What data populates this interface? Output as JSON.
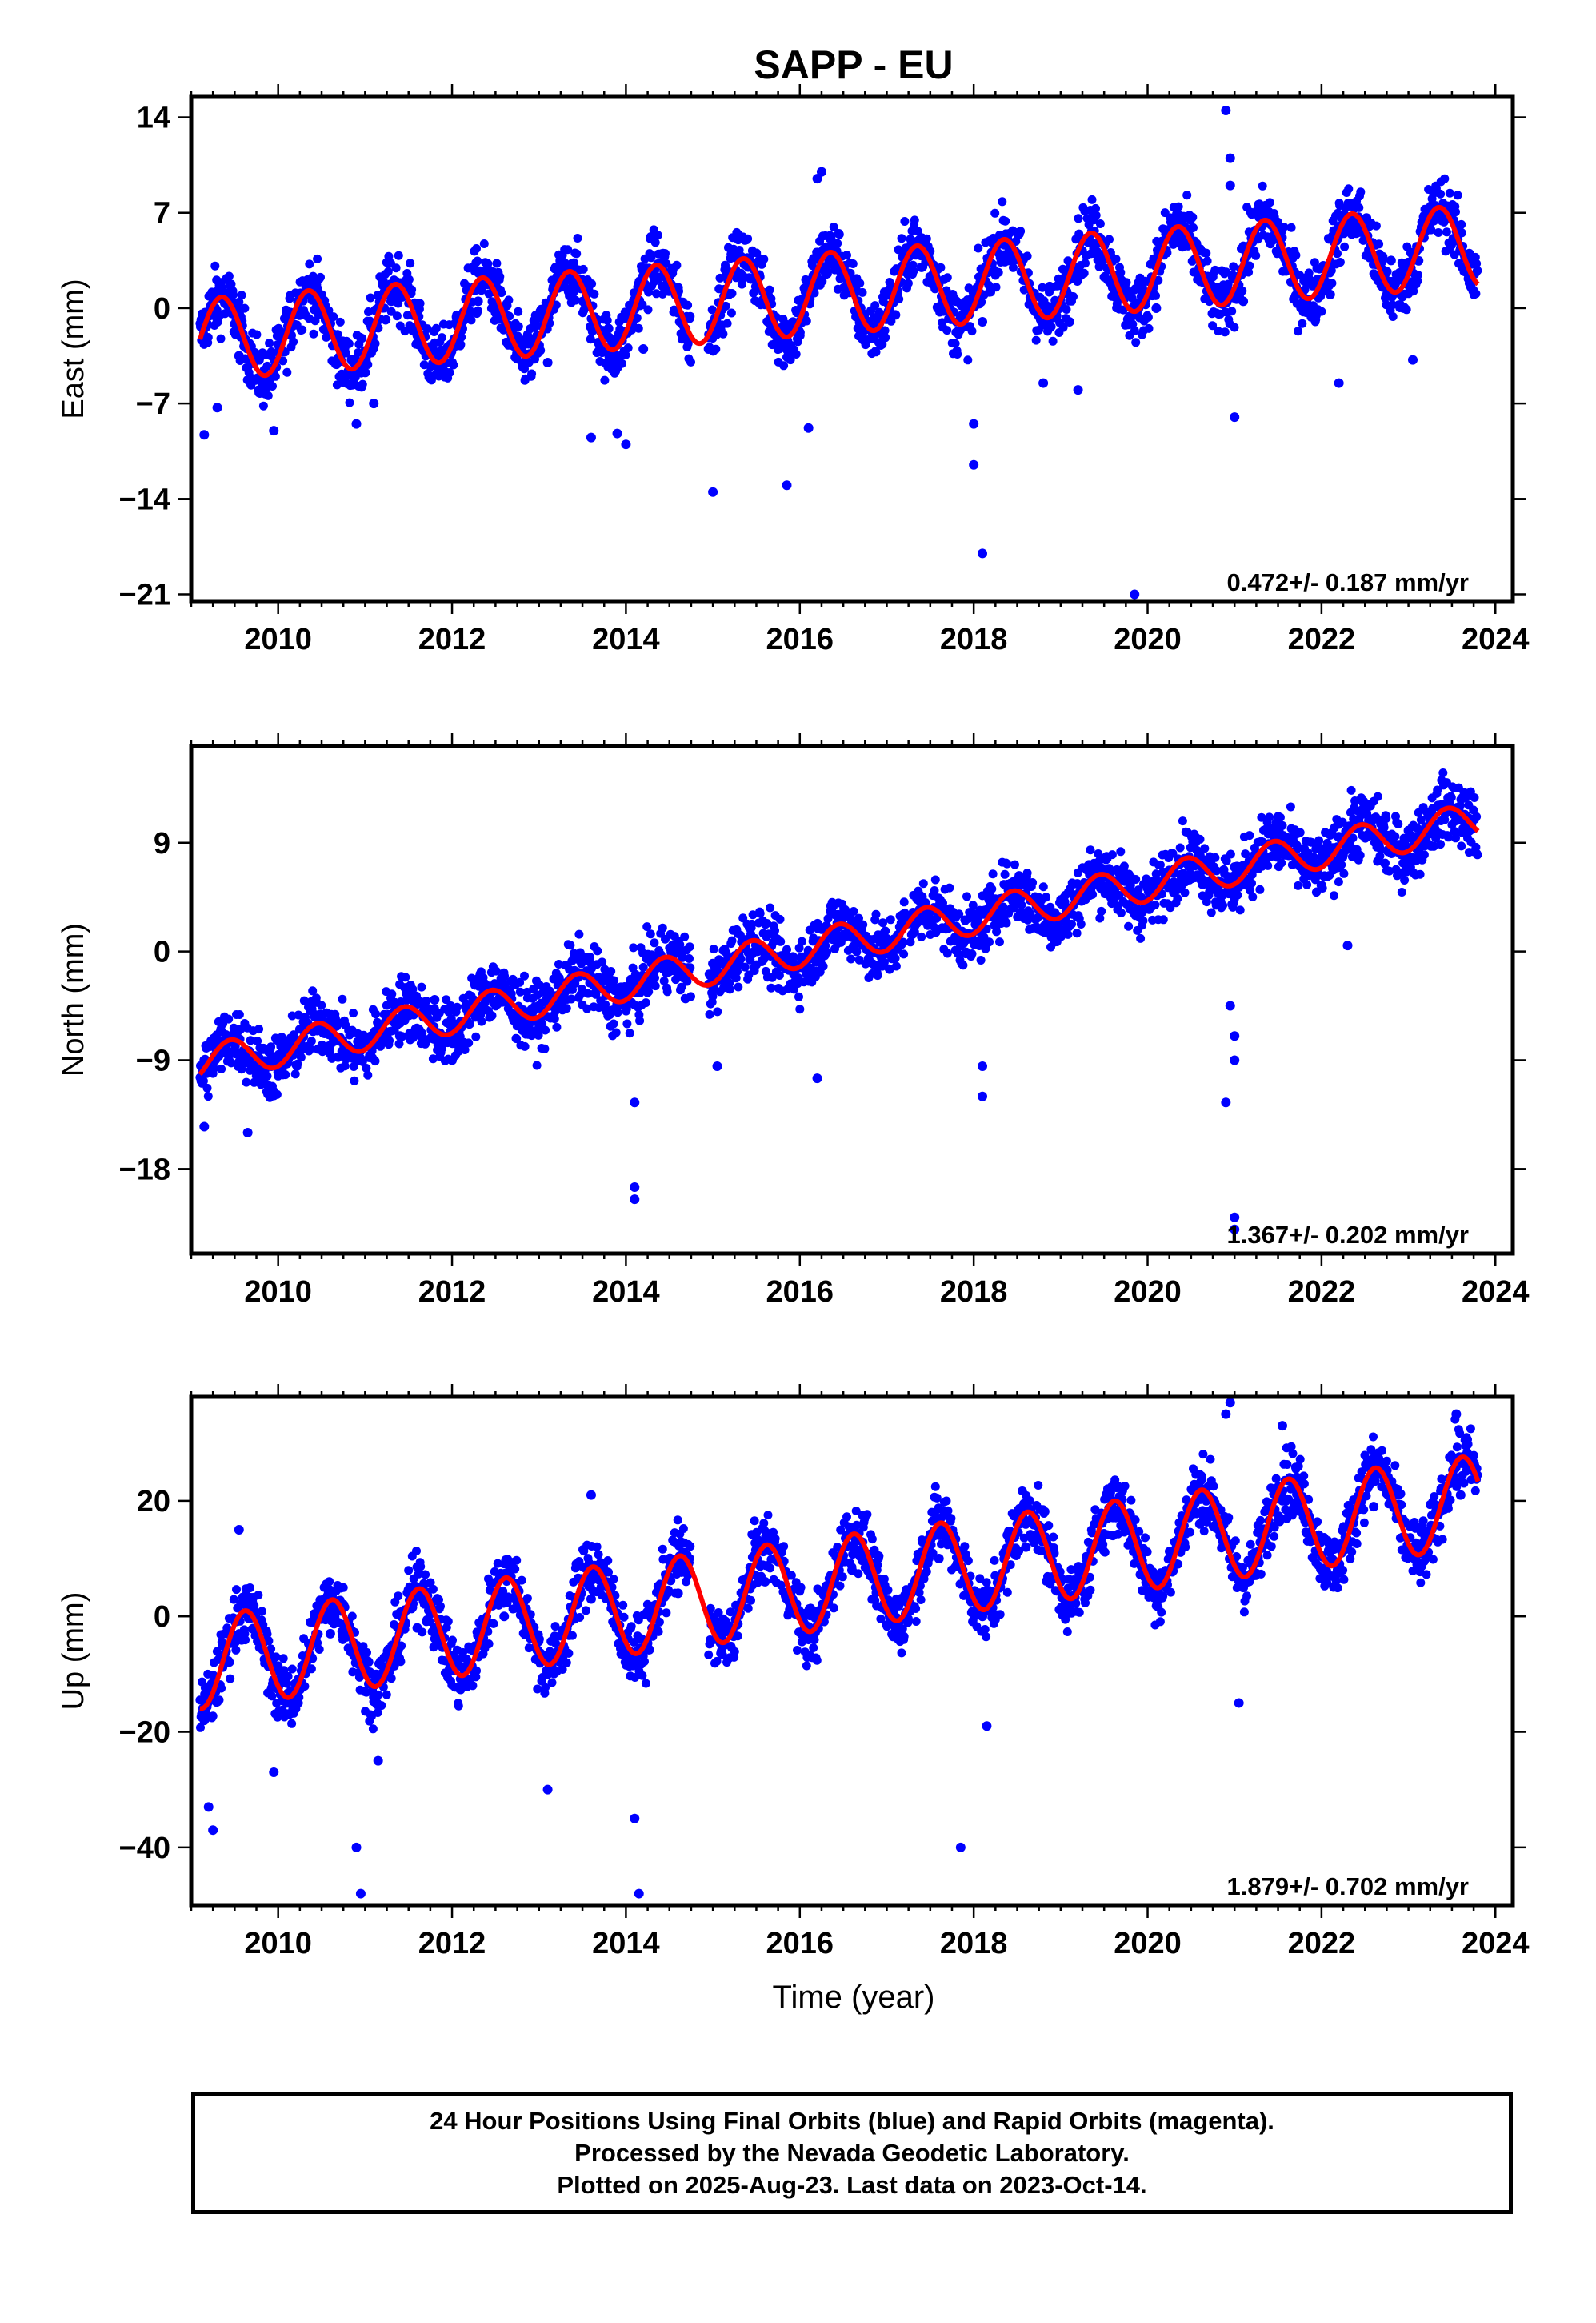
{
  "title": "SAPP - EU",
  "x_axis_label": "Time (year)",
  "x_tick_labels": [
    "2010",
    "2012",
    "2014",
    "2016",
    "2018",
    "2020",
    "2022",
    "2024"
  ],
  "colors": {
    "points": "#0000ff",
    "fit": "#ff0000",
    "frame": "#000000"
  },
  "footer": {
    "line1": "24 Hour Positions Using Final Orbits (blue) and Rapid Orbits (magenta).",
    "line2": "Processed by the Nevada Geodetic Laboratory.",
    "line3": "Plotted on 2025-Aug-23. Last data on 2023-Oct-14."
  },
  "chart_data": [
    {
      "type": "scatter",
      "ylabel": "East (mm)",
      "rate_label": "0.472+/- 0.187 mm/yr",
      "xlim": [
        2009.0,
        2024.2
      ],
      "ylim": [
        -21.5,
        15.5
      ],
      "y_ticks": [
        14,
        7,
        0,
        -7,
        -14,
        -21
      ],
      "y_tick_labels": [
        "14",
        "7",
        "0",
        "−7",
        "−14",
        "−21"
      ],
      "x_ticks": [
        2010,
        2012,
        2014,
        2016,
        2018,
        2020,
        2022,
        2024
      ],
      "series": [
        {
          "kind": "points",
          "x": [
            2009.15,
            2009.3,
            2009.55,
            2009.9,
            2010.15,
            2010.5,
            2010.9,
            2011.3,
            2011.6,
            2012.0,
            2012.3,
            2012.7,
            2013.1,
            2013.4,
            2013.8,
            2014.2,
            2014.6,
            2014.95,
            2015.3,
            2015.6,
            2016.0,
            2016.3,
            2016.7,
            2017.1,
            2017.4,
            2017.8,
            2018.1,
            2018.4,
            2018.8,
            2019.1,
            2019.4,
            2019.8,
            2020.1,
            2020.4,
            2020.8,
            2021.1,
            2021.4,
            2021.8,
            2022.1,
            2022.4,
            2022.8,
            2023.1,
            2023.4,
            2023.7
          ],
          "y": [
            -2.5,
            -1.0,
            -3.5,
            -5.5,
            -2.0,
            0.0,
            -4.5,
            0.5,
            -2.0,
            -4.0,
            0.5,
            -1.5,
            -4.0,
            1.5,
            -1.5,
            -3.0,
            1.5,
            -3.0,
            2.5,
            0.5,
            -2.0,
            2.5,
            0.0,
            -0.5,
            3.0,
            0.5,
            -1.0,
            3.5,
            0.5,
            -1.0,
            4.0,
            1.0,
            0.0,
            4.5,
            1.5,
            0.5,
            5.0,
            2.0,
            1.0,
            5.5,
            3.5,
            2.0,
            6.5,
            4.0
          ]
        },
        {
          "kind": "points",
          "label": "outliers",
          "x": [
            2009.15,
            2009.3,
            2009.95,
            2010.9,
            2011.1,
            2013.6,
            2013.9,
            2014.0,
            2015.0,
            2015.85,
            2016.1,
            2016.25,
            2018.0,
            2018.0,
            2018.1,
            2018.8,
            2019.2,
            2019.85,
            2020.9,
            2020.95,
            2020.95,
            2021.0,
            2022.2,
            2023.05,
            2016.2
          ],
          "y": [
            -9.3,
            -7.3,
            -9.0,
            -8.5,
            -7.0,
            -9.5,
            -9.2,
            -10.0,
            -13.5,
            -13.0,
            -8.8,
            10.0,
            -11.5,
            -8.5,
            -18.0,
            -5.5,
            -6.0,
            -21.0,
            14.5,
            11.0,
            9.0,
            -8.0,
            -5.5,
            -3.8,
            9.5
          ]
        },
        {
          "kind": "fit",
          "model": {
            "t0": 2009.1,
            "offset": -2.3,
            "trend": 0.47,
            "amplitude": 3.0,
            "peak_phase": 0.35,
            "span": [
              2009.1,
              2023.8
            ]
          }
        }
      ]
    },
    {
      "type": "scatter",
      "ylabel": "North (mm)",
      "rate_label": "1.367+/- 0.202 mm/yr",
      "xlim": [
        2009.0,
        2024.2
      ],
      "ylim": [
        -25.0,
        17.0
      ],
      "y_ticks": [
        9,
        0,
        -9,
        -18
      ],
      "y_tick_labels": [
        "9",
        "0",
        "−9",
        "−18"
      ],
      "x_ticks": [
        2010,
        2012,
        2014,
        2016,
        2018,
        2020,
        2022,
        2024
      ],
      "series": [
        {
          "kind": "points",
          "x": [
            2009.15,
            2009.3,
            2009.55,
            2009.9,
            2010.3,
            2010.6,
            2011.0,
            2011.4,
            2011.8,
            2012.2,
            2012.6,
            2013.0,
            2013.4,
            2013.8,
            2014.2,
            2014.6,
            2015.0,
            2015.4,
            2015.8,
            2016.2,
            2016.6,
            2017.0,
            2017.4,
            2017.8,
            2018.2,
            2018.6,
            2019.0,
            2019.4,
            2019.8,
            2020.2,
            2020.6,
            2021.0,
            2021.4,
            2021.8,
            2022.2,
            2022.6,
            2023.0,
            2023.4,
            2023.7
          ],
          "y": [
            -9.0,
            -8.0,
            -6.5,
            -9.0,
            -8.0,
            -6.0,
            -7.5,
            -7.0,
            -4.0,
            -6.0,
            -3.0,
            -4.5,
            -2.0,
            -2.5,
            -3.0,
            0.0,
            -1.0,
            1.0,
            -0.5,
            0.0,
            2.5,
            1.0,
            3.5,
            2.0,
            3.5,
            5.5,
            4.0,
            6.5,
            5.5,
            6.5,
            8.0,
            7.0,
            10.0,
            8.5,
            9.5,
            11.0,
            10.0,
            12.0,
            11.0
          ]
        },
        {
          "kind": "points",
          "label": "outliers",
          "x": [
            2009.15,
            2009.65,
            2010.0,
            2012.0,
            2014.1,
            2014.1,
            2014.1,
            2015.05,
            2016.2,
            2018.1,
            2018.1,
            2020.9,
            2020.95,
            2021.0,
            2021.0,
            2021.0,
            2021.0,
            2022.3
          ],
          "y": [
            -14.5,
            -15.0,
            -10.0,
            -9.0,
            -19.5,
            -20.5,
            -12.5,
            -9.5,
            -10.5,
            -9.5,
            -12.0,
            -12.5,
            -4.5,
            -7.0,
            -9.0,
            -22.0,
            -23.0,
            0.5
          ]
        },
        {
          "kind": "fit",
          "model": {
            "t0": 2009.1,
            "offset": -9.3,
            "trend": 1.37,
            "amplitude": 1.5,
            "peak_phase": 0.45,
            "span": [
              2009.1,
              2023.8
            ]
          }
        }
      ]
    },
    {
      "type": "scatter",
      "ylabel": "Up (mm)",
      "rate_label": "1.879+/- 0.702 mm/yr",
      "xlim": [
        2009.0,
        2024.2
      ],
      "ylim": [
        -50.0,
        38.0
      ],
      "y_ticks": [
        20,
        0,
        -20,
        -40
      ],
      "y_tick_labels": [
        "20",
        "0",
        "−20",
        "−40"
      ],
      "x_ticks": [
        2010,
        2012,
        2014,
        2016,
        2018,
        2020,
        2022,
        2024
      ],
      "series": [
        {
          "kind": "points",
          "x": [
            2009.15,
            2009.4,
            2009.6,
            2010.1,
            2010.6,
            2011.1,
            2011.6,
            2012.1,
            2012.6,
            2013.1,
            2013.6,
            2014.1,
            2014.6,
            2015.1,
            2015.6,
            2016.1,
            2016.6,
            2017.1,
            2017.6,
            2018.1,
            2018.6,
            2019.1,
            2019.6,
            2020.1,
            2020.6,
            2021.1,
            2021.6,
            2022.1,
            2022.6,
            2023.1,
            2023.6
          ],
          "y": [
            -18.0,
            -8.0,
            -4.0,
            -15.0,
            -3.0,
            -14.0,
            -2.0,
            -12.0,
            0.0,
            -10.0,
            3.0,
            -8.0,
            4.0,
            -6.0,
            6.0,
            -4.0,
            8.0,
            -2.0,
            10.0,
            0.0,
            12.0,
            1.0,
            14.0,
            3.0,
            16.0,
            5.0,
            17.0,
            7.0,
            19.0,
            9.0,
            21.0
          ]
        },
        {
          "kind": "points",
          "label": "outliers",
          "x": [
            2009.2,
            2009.25,
            2009.55,
            2009.95,
            2010.9,
            2010.95,
            2011.15,
            2013.1,
            2013.6,
            2014.1,
            2014.15,
            2017.85,
            2018.15,
            2020.9,
            2020.95,
            2021.05,
            2021.55,
            2023.55
          ],
          "y": [
            -33.0,
            -37.0,
            15.0,
            -27.0,
            -40.0,
            -48.0,
            -25.0,
            -30.0,
            21.0,
            -35.0,
            -48.0,
            -40.0,
            -19.0,
            35.0,
            37.0,
            -15.0,
            33.0,
            35.0
          ]
        },
        {
          "kind": "fit",
          "model": {
            "t0": 2009.1,
            "offset": -8.0,
            "trend": 1.9,
            "amplitude": 8.0,
            "peak_phase": 0.62,
            "span": [
              2009.1,
              2023.8
            ]
          }
        }
      ]
    }
  ]
}
